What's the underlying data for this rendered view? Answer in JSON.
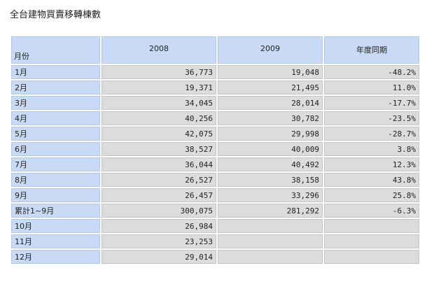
{
  "title": "全台建物買賣移轉棟數",
  "headers": [
    "月份",
    "2008",
    "2009",
    "年度同期"
  ],
  "rows": [
    {
      "month": "1月",
      "y2008": "36,773",
      "y2009": "19,048",
      "yoy": "-48.2%"
    },
    {
      "month": "2月",
      "y2008": "19,371",
      "y2009": "21,495",
      "yoy": "11.0%"
    },
    {
      "month": "3月",
      "y2008": "34,045",
      "y2009": "28,014",
      "yoy": "-17.7%"
    },
    {
      "month": "4月",
      "y2008": "40,256",
      "y2009": "30,782",
      "yoy": "-23.5%"
    },
    {
      "month": "5月",
      "y2008": "42,075",
      "y2009": "29,998",
      "yoy": "-28.7%"
    },
    {
      "month": "6月",
      "y2008": "38,527",
      "y2009": "40,009",
      "yoy": "3.8%"
    },
    {
      "month": "7月",
      "y2008": "36,044",
      "y2009": "40,492",
      "yoy": "12.3%"
    },
    {
      "month": "8月",
      "y2008": "26,527",
      "y2009": "38,158",
      "yoy": "43.8%"
    },
    {
      "month": "9月",
      "y2008": "26,457",
      "y2009": "33,296",
      "yoy": "25.8%"
    },
    {
      "month": "累計1~9月",
      "y2008": "300,075",
      "y2009": "281,292",
      "yoy": "-6.3%"
    },
    {
      "month": "10月",
      "y2008": "26,984",
      "y2009": "",
      "yoy": ""
    },
    {
      "month": "11月",
      "y2008": "23,253",
      "y2009": "",
      "yoy": ""
    },
    {
      "month": "12月",
      "y2008": "29,014",
      "y2009": "",
      "yoy": ""
    }
  ],
  "colors": {
    "header_bg": "#c8daf5",
    "cell_bg": "#dcdcdc"
  }
}
